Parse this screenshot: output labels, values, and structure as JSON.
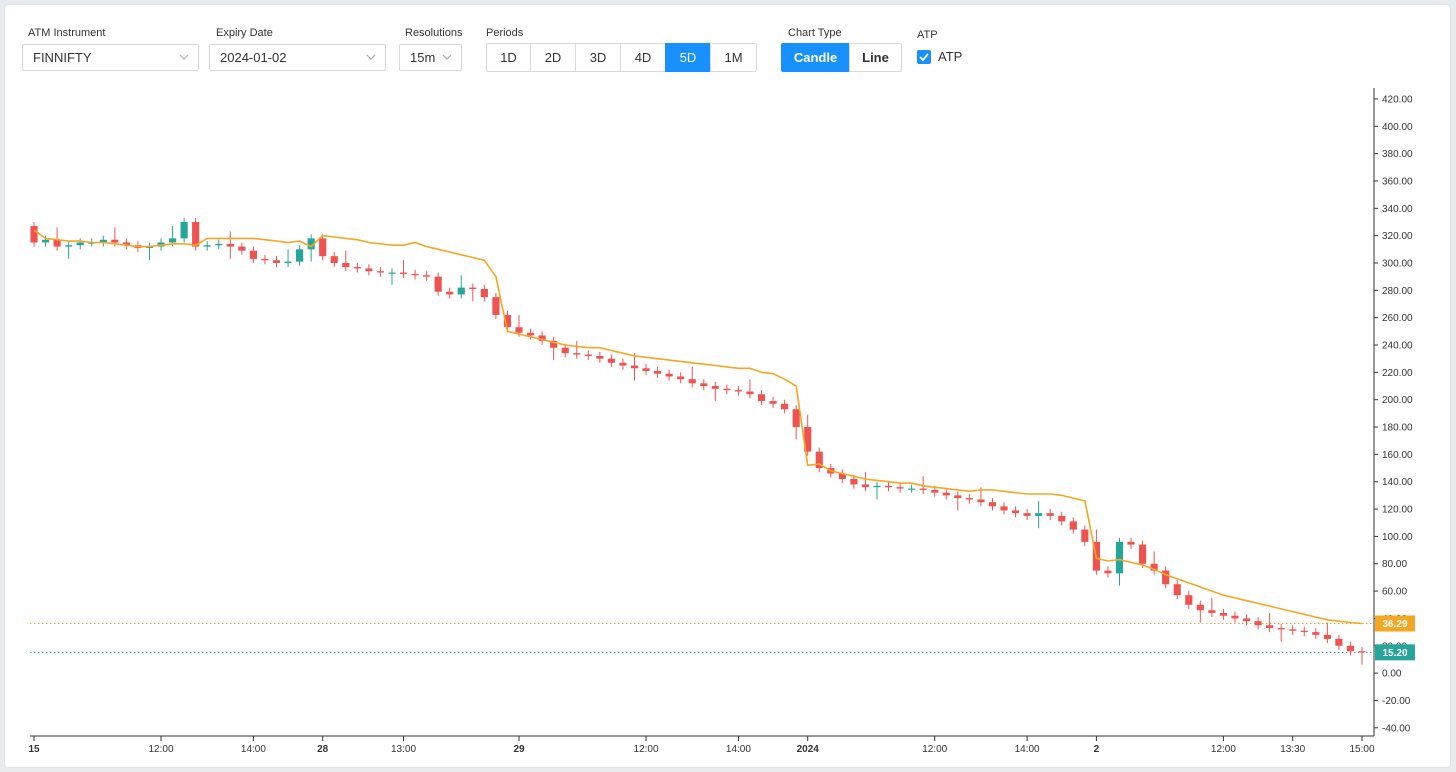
{
  "controls": {
    "instrument": {
      "label": "ATM Instrument",
      "value": "FINNIFTY"
    },
    "expiry": {
      "label": "Expiry Date",
      "value": "2024-01-02"
    },
    "resolution": {
      "label": "Resolutions",
      "value": "15m"
    },
    "periods": {
      "label": "Periods",
      "options": [
        "1D",
        "2D",
        "3D",
        "4D",
        "5D",
        "1M"
      ],
      "active": "5D"
    },
    "chart_type": {
      "label": "Chart Type",
      "options": [
        "Candle",
        "Line"
      ],
      "active": "Candle"
    },
    "atp": {
      "label": "ATP",
      "checkbox_label": "ATP",
      "checked": true
    }
  },
  "colors": {
    "up": "#26a69a",
    "down": "#ef5350",
    "atp_line": "#f5a623",
    "accent": "#1890ff"
  },
  "chart_data": {
    "type": "candlestick",
    "y_ticks": [
      "420.00",
      "400.00",
      "380.00",
      "360.00",
      "340.00",
      "320.00",
      "300.00",
      "280.00",
      "260.00",
      "240.00",
      "220.00",
      "200.00",
      "180.00",
      "160.00",
      "140.00",
      "120.00",
      "100.00",
      "80.00",
      "60.00",
      "40.00",
      "20.00",
      "0.00",
      "-20.00",
      "-40.00"
    ],
    "ylim": [
      -46,
      428
    ],
    "x_ticks": [
      {
        "label": "15",
        "bar": 0
      },
      {
        "label": "12:00",
        "bar": 11
      },
      {
        "label": "14:00",
        "bar": 19
      },
      {
        "label": "28",
        "bar": 25
      },
      {
        "label": "13:00",
        "bar": 32
      },
      {
        "label": "29",
        "bar": 42
      },
      {
        "label": "12:00",
        "bar": 53
      },
      {
        "label": "14:00",
        "bar": 61
      },
      {
        "label": "2024",
        "bar": 67
      },
      {
        "label": "12:00",
        "bar": 78
      },
      {
        "label": "14:00",
        "bar": 86
      },
      {
        "label": "2",
        "bar": 92
      },
      {
        "label": "12:00",
        "bar": 103
      },
      {
        "label": "13:30",
        "bar": 109
      },
      {
        "label": "15:00",
        "bar": 115
      }
    ],
    "n_bars": 116,
    "close_series": [
      315,
      317,
      312,
      313,
      315,
      315,
      317,
      315,
      313,
      311,
      312,
      315,
      318,
      330,
      312,
      313,
      314,
      312,
      309,
      303,
      302,
      300,
      301,
      310,
      318,
      305,
      300,
      297,
      296,
      294,
      293,
      293,
      292,
      291,
      290,
      279,
      277,
      282,
      281,
      275,
      262,
      253,
      249,
      247,
      243,
      238,
      234,
      233,
      232,
      230,
      227,
      225,
      223,
      221,
      219,
      217,
      215,
      212,
      210,
      208,
      207,
      206,
      204,
      199,
      197,
      193,
      180,
      162,
      150,
      146,
      142,
      138,
      136,
      137,
      136,
      135,
      135,
      134,
      132,
      130,
      128,
      127,
      125,
      122,
      119,
      117,
      115,
      117,
      115,
      111,
      105,
      96,
      75,
      73,
      96,
      94,
      80,
      75,
      65,
      57,
      50,
      46,
      44,
      42,
      40,
      38,
      35,
      33,
      32,
      31,
      30,
      28,
      25,
      20,
      16,
      15.2
    ],
    "atp_series": [
      324,
      318,
      317,
      316,
      316,
      315,
      315,
      314,
      313,
      312,
      312,
      313,
      314,
      314,
      313,
      318,
      318,
      318,
      318,
      318,
      317,
      316,
      315,
      316,
      312,
      320,
      319,
      318,
      317,
      315,
      314,
      313,
      313,
      315,
      312,
      310,
      308,
      306,
      304,
      302,
      290,
      250,
      248,
      246,
      244,
      242,
      240,
      239,
      238,
      238,
      236,
      234,
      232,
      231,
      230,
      229,
      228,
      227,
      226,
      225,
      224,
      223,
      223,
      220,
      219,
      215,
      210,
      152,
      153,
      148,
      146,
      144,
      142,
      141,
      140,
      139,
      139,
      137,
      136,
      135,
      134,
      133,
      134,
      134,
      133,
      132,
      131,
      131,
      131,
      130,
      128,
      126,
      84,
      82,
      83,
      81,
      79,
      76,
      72,
      69,
      66,
      63,
      60,
      57,
      55,
      53,
      51,
      49,
      47,
      45,
      43,
      41,
      39,
      38,
      37,
      36.29
    ],
    "last_close": "15.20",
    "last_atp": "36.29"
  }
}
